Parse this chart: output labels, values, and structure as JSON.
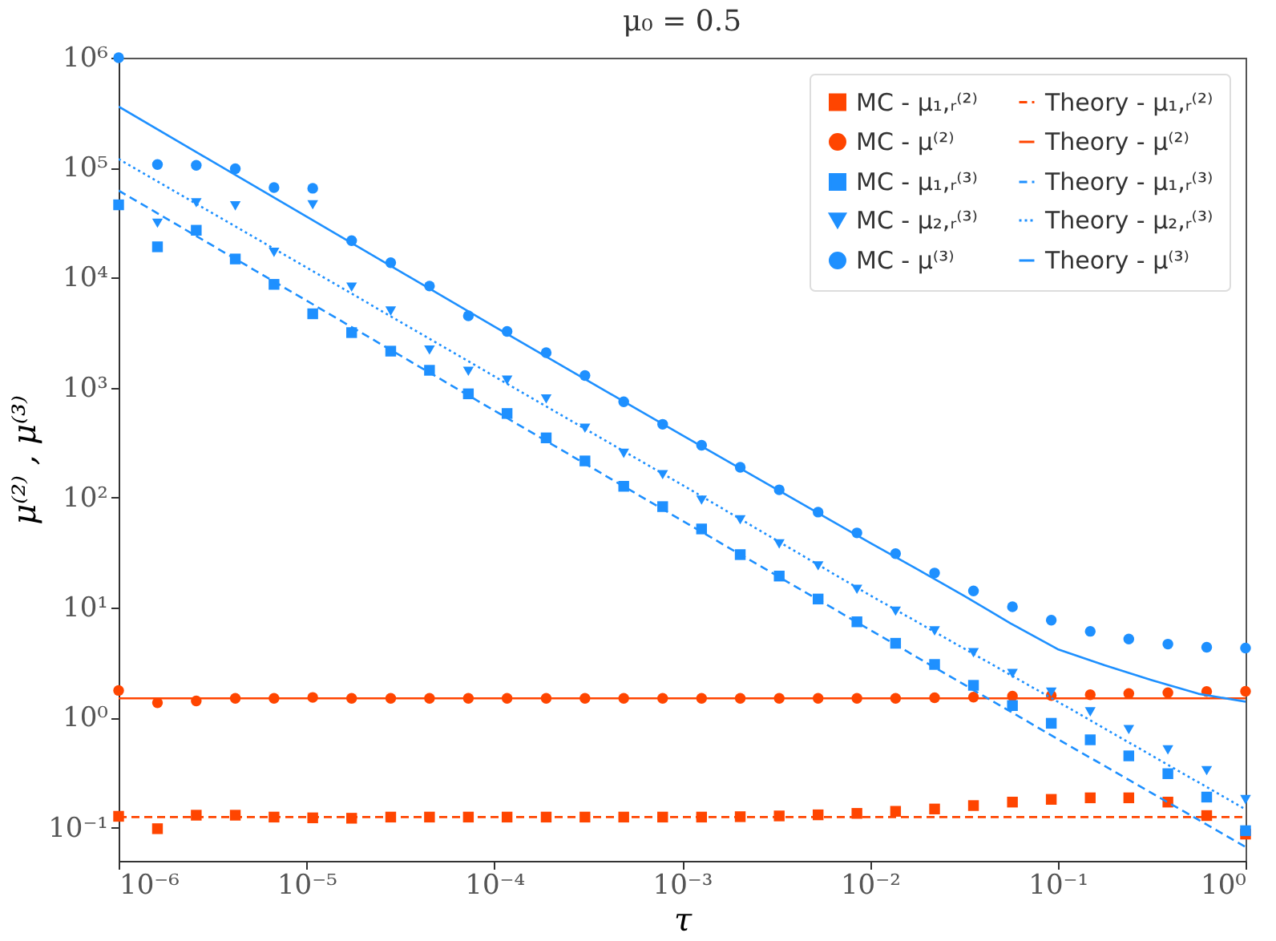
{
  "chart_data": {
    "type": "scatter",
    "title": "μ₀ = 0.5",
    "xlabel": "τ",
    "ylabel": "μ⁽²⁾ , μ⁽³⁾",
    "x": [
      1e-06,
      1.61e-06,
      2.59e-06,
      4.18e-06,
      6.72e-06,
      1.08e-05,
      1.74e-05,
      2.81e-05,
      4.52e-05,
      7.28e-05,
      0.000117,
      0.000189,
      0.000304,
      0.000489,
      0.000788,
      0.00127,
      0.00204,
      0.00329,
      0.0053,
      0.00853,
      0.0137,
      0.0221,
      0.0356,
      0.0574,
      0.0924,
      0.149,
      0.239,
      0.386,
      0.621,
      1
    ],
    "xlim": [
      1e-06,
      1
    ],
    "ylim": [
      0.05,
      1000000.0
    ],
    "log": "xy",
    "grid": false,
    "legend": "top right",
    "xticks": [
      {
        "value": 1e-06,
        "label": "10⁻⁶"
      },
      {
        "value": 1e-05,
        "label": "10⁻⁵"
      },
      {
        "value": 0.0001,
        "label": "10⁻⁴"
      },
      {
        "value": 0.001,
        "label": "10⁻³"
      },
      {
        "value": 0.01,
        "label": "10⁻²"
      },
      {
        "value": 0.1,
        "label": "10⁻¹"
      },
      {
        "value": 1,
        "label": "10⁰"
      }
    ],
    "yticks": [
      {
        "value": 0.1,
        "label": "10⁻¹"
      },
      {
        "value": 1,
        "label": "10⁰"
      },
      {
        "value": 10,
        "label": "10¹"
      },
      {
        "value": 100,
        "label": "10²"
      },
      {
        "value": 1000,
        "label": "10³"
      },
      {
        "value": 10000,
        "label": "10⁴"
      },
      {
        "value": 100000,
        "label": "10⁵"
      },
      {
        "value": 1000000,
        "label": "10⁶"
      }
    ],
    "series": [
      {
        "name": "MC - μ₁,ᵣ⁽²⁾",
        "type": "scatter",
        "marker": "square",
        "color": "#ff4500",
        "values": [
          0.127,
          0.098,
          0.13,
          0.13,
          0.125,
          0.123,
          0.122,
          0.125,
          0.125,
          0.125,
          0.125,
          0.125,
          0.125,
          0.125,
          0.125,
          0.125,
          0.126,
          0.128,
          0.131,
          0.135,
          0.141,
          0.148,
          0.159,
          0.171,
          0.181,
          0.187,
          0.187,
          0.171,
          0.129,
          0.0875
        ]
      },
      {
        "name": "Theory - μ₁,ᵣ⁽²⁾",
        "type": "line",
        "line_style": "dashed",
        "color": "#ff4500",
        "x": [
          1e-06,
          1
        ],
        "values": [
          0.125,
          0.125
        ]
      },
      {
        "name": "MC - μ⁽²⁾",
        "type": "scatter",
        "marker": "circle",
        "color": "#ff4500",
        "values": [
          1.77,
          1.37,
          1.42,
          1.5,
          1.5,
          1.53,
          1.5,
          1.5,
          1.5,
          1.5,
          1.5,
          1.5,
          1.5,
          1.5,
          1.5,
          1.5,
          1.5,
          1.5,
          1.5,
          1.5,
          1.5,
          1.52,
          1.54,
          1.57,
          1.59,
          1.62,
          1.66,
          1.69,
          1.73,
          1.74
        ]
      },
      {
        "name": "Theory - μ⁽²⁾",
        "type": "line",
        "line_style": "solid",
        "color": "#ff4500",
        "x": [
          1e-06,
          1
        ],
        "values": [
          1.5,
          1.5
        ]
      },
      {
        "name": "MC - μ₁,ᵣ⁽³⁾",
        "type": "scatter",
        "marker": "square",
        "color": "#1e90ff",
        "values": [
          46000,
          19100,
          27000,
          14800,
          8700,
          4700,
          3170,
          2150,
          1440,
          880,
          583,
          350,
          216,
          127,
          83,
          52,
          30.4,
          19.4,
          12,
          7.45,
          4.75,
          3.05,
          1.97,
          1.29,
          0.89,
          0.63,
          0.45,
          0.31,
          0.19,
          0.094
        ]
      },
      {
        "name": "Theory - μ₁,ᵣ⁽³⁾",
        "type": "line",
        "line_style": "dashed",
        "color": "#1e90ff",
        "x": [
          1e-06,
          1e-05,
          0.0001,
          0.001,
          0.01,
          0.1,
          1
        ],
        "values": [
          62000,
          6200,
          620,
          62,
          6.3,
          0.64,
          0.067
        ]
      },
      {
        "name": "MC - μ₂,ᵣ⁽³⁾",
        "type": "scatter",
        "marker": "triangle",
        "color": "#1e90ff",
        "values": [
          null,
          31300,
          48000,
          45000,
          17000,
          46000,
          8200,
          4970,
          2200,
          1410,
          1170,
          790,
          428,
          253,
          162,
          95,
          63,
          38,
          24,
          14.7,
          9.3,
          6.15,
          3.9,
          2.52,
          1.71,
          1.13,
          0.78,
          0.51,
          0.33,
          0.18
        ]
      },
      {
        "name": "Theory - μ₂,ᵣ⁽³⁾",
        "type": "line",
        "line_style": "dotted",
        "color": "#1e90ff",
        "x": [
          1e-06,
          1e-05,
          0.0001,
          0.001,
          0.01,
          0.1,
          1
        ],
        "values": [
          120000,
          12400,
          1270,
          131,
          13,
          1.4,
          0.147
        ]
      },
      {
        "name": "MC - μ⁽³⁾",
        "type": "scatter",
        "marker": "circle",
        "color": "#1e90ff",
        "values": [
          1000000,
          107000,
          105000,
          98000,
          66000,
          65000,
          21700,
          13700,
          8400,
          4500,
          3250,
          2080,
          1290,
          745,
          465,
          300,
          189,
          118,
          74,
          47.9,
          31,
          20.7,
          14.2,
          10.2,
          7.7,
          6.1,
          5.2,
          4.67,
          4.37,
          4.3
        ]
      },
      {
        "name": "Theory - μ⁽³⁾",
        "type": "line",
        "line_style": "solid",
        "color": "#1e90ff",
        "x": [
          1e-06,
          1e-05,
          0.0001,
          0.001,
          0.01,
          0.0178,
          0.0316,
          0.0562,
          0.1,
          0.178,
          0.316,
          0.562,
          1
        ],
        "values": [
          360000,
          36000,
          3600,
          370,
          39,
          22.5,
          12.9,
          7.2,
          4.2,
          3,
          2.2,
          1.65,
          1.4
        ]
      }
    ]
  }
}
